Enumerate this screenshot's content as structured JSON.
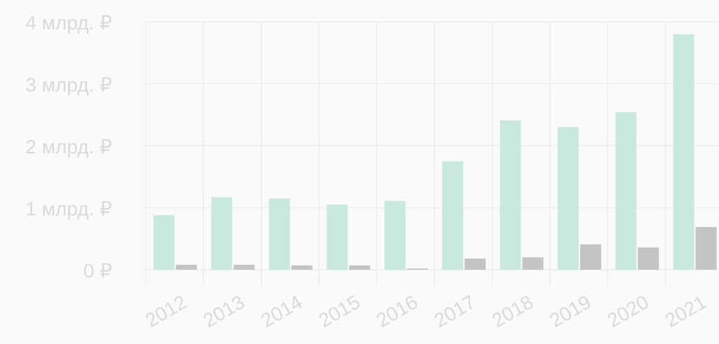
{
  "chart_data": {
    "type": "bar",
    "title": "",
    "xlabel": "",
    "ylabel": "",
    "categories": [
      "2012",
      "2013",
      "2014",
      "2015",
      "2016",
      "2017",
      "2018",
      "2019",
      "2020",
      "2021"
    ],
    "series": [
      {
        "color": "#c9e9df",
        "values": [
          0.88,
          1.17,
          1.15,
          1.05,
          1.11,
          1.75,
          2.41,
          2.3,
          2.54,
          3.8
        ]
      },
      {
        "color": "#c4c4c4",
        "values": [
          0.08,
          0.08,
          0.07,
          0.07,
          0.02,
          0.18,
          0.2,
          0.41,
          0.36,
          0.69
        ]
      }
    ],
    "y_ticks": [
      {
        "value": 0,
        "label": "0 ₽"
      },
      {
        "value": 1,
        "label": "1 млрд. ₽"
      },
      {
        "value": 2,
        "label": "2 млрд. ₽"
      },
      {
        "value": 3,
        "label": "3 млрд. ₽"
      },
      {
        "value": 4,
        "label": "4 млрд. ₽"
      }
    ],
    "ylim": [
      0,
      4
    ],
    "grid": true,
    "legend": "none",
    "colors": {
      "grid": "#ececec",
      "axis_text": "#dadada",
      "background": "#fafafa"
    }
  }
}
